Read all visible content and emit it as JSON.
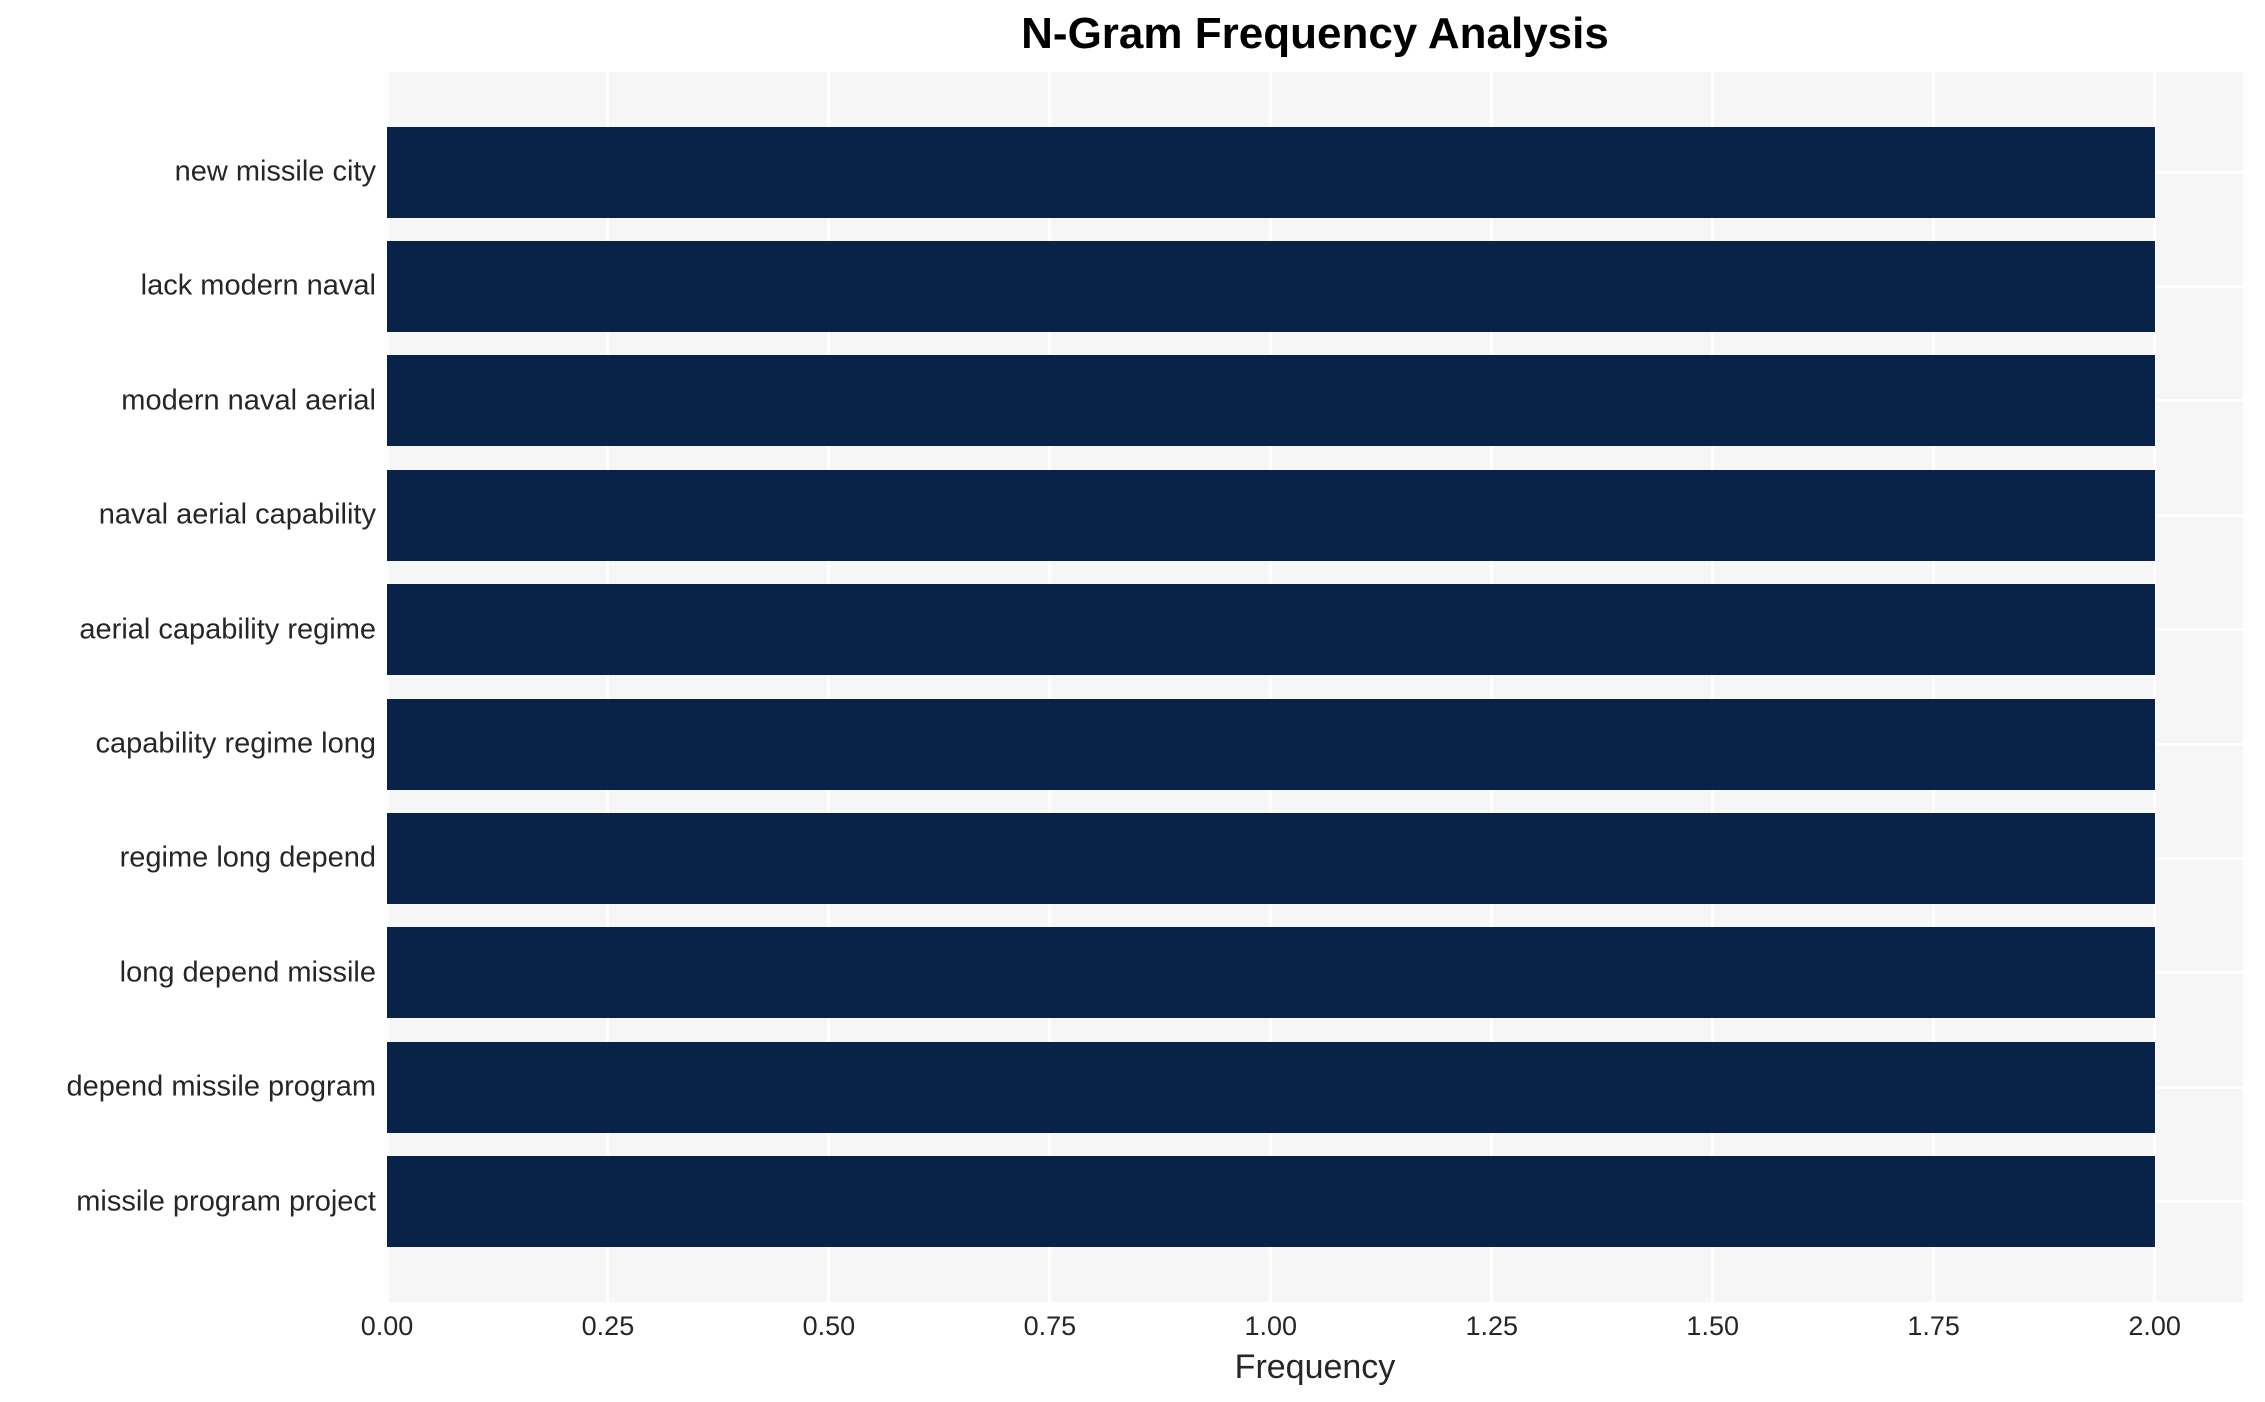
{
  "chart_data": {
    "type": "bar",
    "orientation": "horizontal",
    "title": "N-Gram Frequency Analysis",
    "xlabel": "Frequency",
    "ylabel": "",
    "categories": [
      "new missile city",
      "lack modern naval",
      "modern naval aerial",
      "naval aerial capability",
      "aerial capability regime",
      "capability regime long",
      "regime long depend",
      "long depend missile",
      "depend missile program",
      "missile program project"
    ],
    "values": [
      2,
      2,
      2,
      2,
      2,
      2,
      2,
      2,
      2,
      2
    ],
    "xlim": [
      0,
      2.1
    ],
    "xticks": [
      0,
      0.25,
      0.5,
      0.75,
      1.0,
      1.25,
      1.5,
      1.75,
      2.0
    ],
    "xtick_labels": [
      "0.00",
      "0.25",
      "0.50",
      "0.75",
      "1.00",
      "1.25",
      "1.50",
      "1.75",
      "2.00"
    ],
    "grid": true,
    "legend_position": "none",
    "colors": {
      "bar": "#082347",
      "plot_bg": "#f6f6f6",
      "grid": "#ffffff",
      "title": "#000000",
      "tick_text": "#262626",
      "figure_bg": "#ffffff"
    }
  }
}
